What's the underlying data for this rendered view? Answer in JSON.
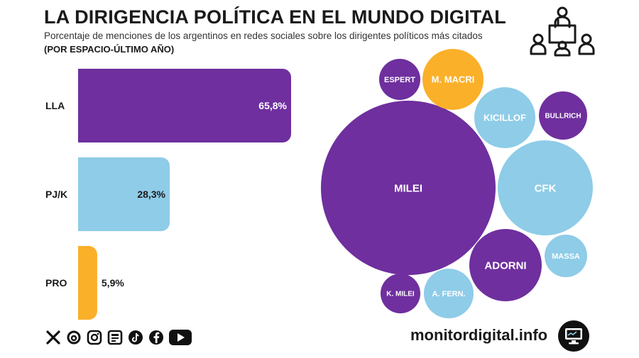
{
  "header": {
    "title": "LA DIRIGENCIA POLÍTICA EN EL MUNDO DIGITAL",
    "subtitle": "Porcentaje de menciones de los argentinos en redes sociales sobre los dirigentes políticos más citados",
    "subtitle2": "(POR ESPACIO-ÚLTIMO AÑO)",
    "icon": "conference-speaker-icon"
  },
  "colors": {
    "purple": "#6f2f9e",
    "lightblue": "#8ecce8",
    "orange": "#fbb029"
  },
  "chart_data": [
    {
      "type": "bar",
      "orientation": "horizontal",
      "categories": [
        "LLA",
        "PJ/K",
        "PRO"
      ],
      "values": [
        65.8,
        28.3,
        5.9
      ],
      "value_labels": [
        "65,8%",
        "28,3%",
        "5,9%"
      ],
      "colors": [
        "#6f2f9e",
        "#8ecce8",
        "#fbb029"
      ],
      "unit": "%"
    },
    {
      "type": "bubble",
      "items": [
        {
          "label": "MILEI",
          "color": "#6f2f9e"
        },
        {
          "label": "CFK",
          "color": "#8ecce8"
        },
        {
          "label": "ADORNI",
          "color": "#6f2f9e"
        },
        {
          "label": "KICILLOF",
          "color": "#8ecce8"
        },
        {
          "label": "M. MACRI",
          "color": "#fbb029"
        },
        {
          "label": "ESPERT",
          "color": "#6f2f9e"
        },
        {
          "label": "BULLRICH",
          "color": "#6f2f9e"
        },
        {
          "label": "MASSA",
          "color": "#8ecce8"
        },
        {
          "label": "A. FERN.",
          "color": "#8ecce8"
        },
        {
          "label": "K. MILEI",
          "color": "#6f2f9e"
        }
      ]
    }
  ],
  "footer": {
    "social_icons": [
      "x-icon",
      "threads-icon",
      "instagram-icon",
      "news-icon",
      "tiktok-icon",
      "facebook-icon",
      "youtube-icon"
    ],
    "website": "monitordigital.info",
    "logo_icon": "monitor-icon"
  }
}
